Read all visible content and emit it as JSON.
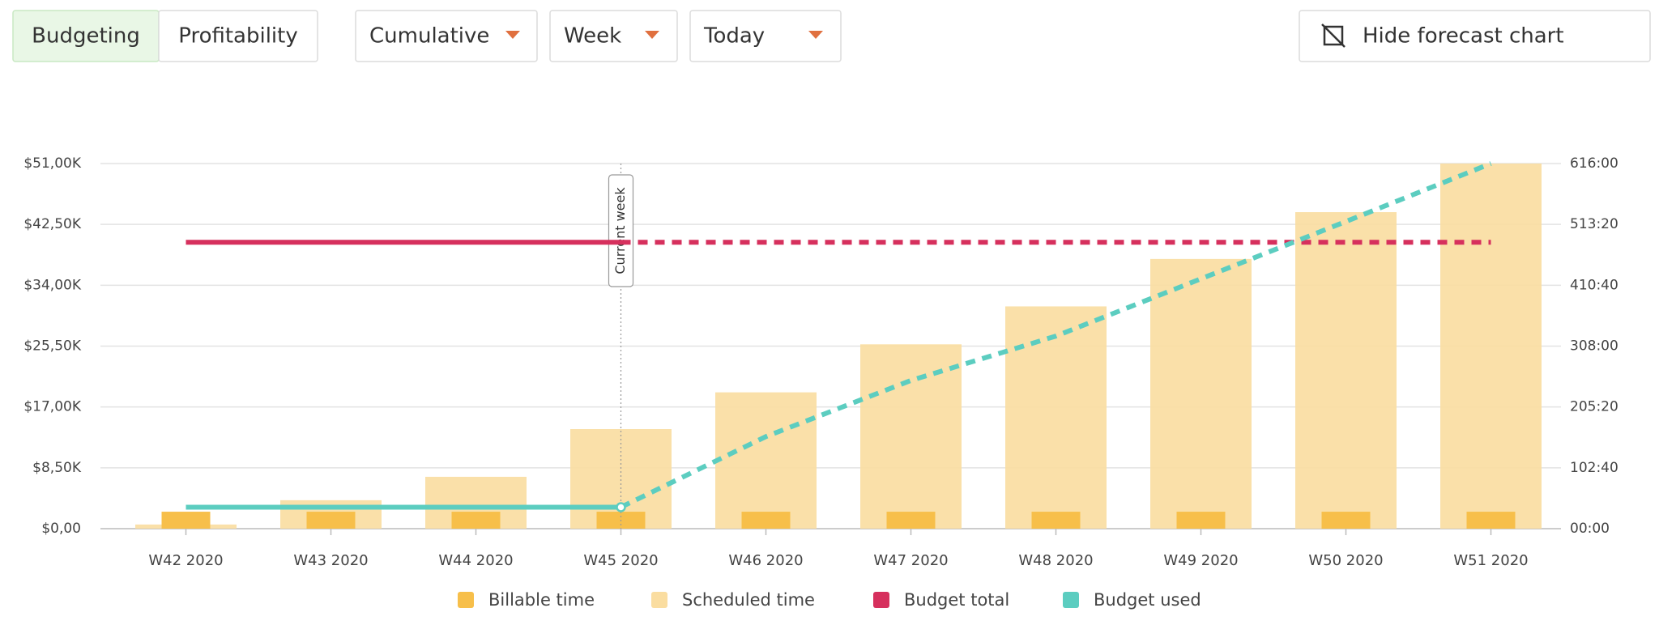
{
  "toolbar": {
    "tabs": [
      "Budgeting",
      "Profitability"
    ],
    "dropdowns": [
      "Cumulative",
      "Week",
      "Today"
    ],
    "hide_button": "Hide forecast chart"
  },
  "chart_data": {
    "type": "bar",
    "categories": [
      "W42 2020",
      "W43 2020",
      "W44 2020",
      "W45 2020",
      "W46 2020",
      "W47 2020",
      "W48 2020",
      "W49 2020",
      "W50 2020",
      "W51 2020"
    ],
    "annotation": {
      "text": "Current week",
      "x": "W45 2020"
    },
    "ylim": [
      0,
      51000
    ],
    "yticks": [
      {
        "value": 0,
        "label": "$0,00"
      },
      {
        "value": 8500,
        "label": "$8,50K"
      },
      {
        "value": 17000,
        "label": "$17,00K"
      },
      {
        "value": 25500,
        "label": "$25,50K"
      },
      {
        "value": 34000,
        "label": "$34,00K"
      },
      {
        "value": 42500,
        "label": "$42,50K"
      },
      {
        "value": 51000,
        "label": "$51,00K"
      }
    ],
    "y2lim": [
      0,
      616
    ],
    "y2ticks": [
      {
        "value": 0,
        "label": "00:00"
      },
      {
        "value": 102.667,
        "label": "102:40"
      },
      {
        "value": 205.333,
        "label": "205:20"
      },
      {
        "value": 308,
        "label": "308:00"
      },
      {
        "value": 410.667,
        "label": "410:40"
      },
      {
        "value": 513.333,
        "label": "513:20"
      },
      {
        "value": 616,
        "label": "616:00"
      }
    ],
    "grid": true,
    "series": [
      {
        "name": "Billable time",
        "type": "bar",
        "axis": "y2",
        "color": "#f7bf4a",
        "values": [
          28.6,
          28.6,
          28.6,
          28.6,
          28.6,
          28.6,
          28.6,
          28.6,
          28.6,
          28.6
        ]
      },
      {
        "name": "Scheduled time",
        "type": "bar",
        "axis": "y2",
        "color": "#fadda0",
        "values": [
          7,
          48,
          87.5,
          168,
          230,
          311,
          375,
          455,
          534,
          616
        ]
      },
      {
        "name": "Budget total",
        "type": "line",
        "color": "#d6305d",
        "values": [
          40000,
          40000,
          40000,
          40000,
          40000,
          40000,
          40000,
          40000,
          40000,
          40000
        ]
      },
      {
        "name": "Budget used",
        "type": "line",
        "color": "#5ccdc0",
        "values": [
          3000,
          3000,
          3000,
          3000,
          12860,
          20700,
          26900,
          34900,
          42900,
          51000
        ]
      }
    ]
  }
}
